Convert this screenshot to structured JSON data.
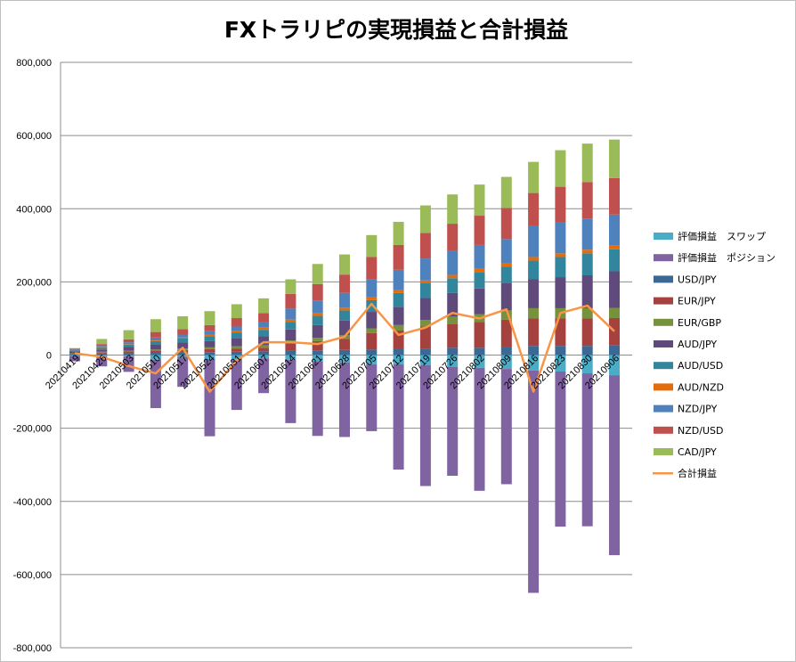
{
  "chart_data": {
    "type": "bar",
    "title": "FXトラリピの実現損益と合計損益",
    "stacked": true,
    "ylim": [
      -800000,
      800000
    ],
    "y_ticks": [
      800000,
      600000,
      400000,
      200000,
      0,
      -200000,
      -400000,
      -600000,
      -800000
    ],
    "y_tick_labels": [
      "800,000",
      "600,000",
      "400,000",
      "200,000",
      "0",
      "-200,000",
      "-400,000",
      "-600,000",
      "-800,000"
    ],
    "x_tick_labels": [
      "20210419",
      "20210426",
      "20210503",
      "20210510",
      "20210517",
      "20210524",
      "20210531",
      "20210607",
      "20210614",
      "20210621",
      "20210628",
      "20210705",
      "20210712",
      "20210719",
      "20210726",
      "20210802",
      "20210809",
      "20210816",
      "20210823",
      "20210830",
      "20210906"
    ],
    "grid": "horizontal",
    "legend_position": "right",
    "series": [
      {
        "name": "評価損益　スワップ",
        "color": "#4bacc6",
        "kind": "bar",
        "values": [
          -2000,
          -3000,
          -4000,
          -13000,
          -5000,
          -11000,
          -13000,
          -9000,
          -13000,
          -17000,
          -20000,
          -25000,
          -25000,
          -28000,
          -32000,
          -35000,
          -38000,
          -42000,
          -45000,
          -50000,
          -55000
        ]
      },
      {
        "name": "評価損益　ポジション",
        "color": "#8064a2",
        "kind": "bar",
        "values": [
          -15000,
          -28000,
          -42000,
          -132000,
          -82000,
          -211000,
          -137000,
          -95000,
          -173000,
          -204000,
          -204000,
          -183000,
          -288000,
          -330000,
          -298000,
          -336000,
          -315000,
          -608000,
          -424000,
          -418000,
          -492000
        ]
      },
      {
        "name": "USD/JPY",
        "color": "#3c6896",
        "kind": "bar",
        "values": [
          3000,
          4000,
          5000,
          6000,
          7000,
          8000,
          9000,
          10000,
          12000,
          13000,
          14000,
          15000,
          17000,
          18000,
          20000,
          20000,
          22000,
          25000,
          25000,
          25000,
          26000
        ]
      },
      {
        "name": "EUR/JPY",
        "color": "#a5413e",
        "kind": "bar",
        "values": [
          2000,
          3000,
          5000,
          6000,
          7000,
          8000,
          9000,
          10000,
          20000,
          25000,
          30000,
          45000,
          50000,
          60000,
          65000,
          70000,
          75000,
          75000,
          75000,
          75000,
          75000
        ]
      },
      {
        "name": "EUR/GBP",
        "color": "#76923c",
        "kind": "bar",
        "values": [
          1000,
          2000,
          2000,
          3000,
          4000,
          5000,
          6000,
          7000,
          8000,
          9000,
          10000,
          13000,
          15000,
          18000,
          20000,
          22000,
          25000,
          28000,
          28000,
          28000,
          28000
        ]
      },
      {
        "name": "AUD/JPY",
        "color": "#5f4a7b",
        "kind": "bar",
        "values": [
          4000,
          6000,
          10000,
          14000,
          16000,
          17000,
          22000,
          25000,
          30000,
          35000,
          40000,
          45000,
          50000,
          60000,
          65000,
          70000,
          75000,
          80000,
          85000,
          90000,
          100000
        ]
      },
      {
        "name": "AUD/USD",
        "color": "#31859c",
        "kind": "bar",
        "values": [
          3000,
          5000,
          7000,
          9000,
          11000,
          13000,
          15000,
          17000,
          20000,
          25000,
          28000,
          32000,
          38000,
          40000,
          40000,
          45000,
          45000,
          50000,
          55000,
          60000,
          60000
        ]
      },
      {
        "name": "AUD/NZD",
        "color": "#e46c0a",
        "kind": "bar",
        "values": [
          0,
          1000,
          1000,
          2000,
          3000,
          4000,
          5000,
          6000,
          7000,
          7000,
          8000,
          8000,
          8000,
          8000,
          9000,
          9000,
          10000,
          10000,
          10000,
          10000,
          10000
        ]
      },
      {
        "name": "NZD/JPY",
        "color": "#4f81bd",
        "kind": "bar",
        "values": [
          2000,
          4000,
          5000,
          8000,
          8000,
          10000,
          12000,
          15000,
          30000,
          35000,
          40000,
          50000,
          55000,
          60000,
          65000,
          65000,
          65000,
          85000,
          85000,
          85000,
          85000
        ]
      },
      {
        "name": "NZD/USD",
        "color": "#c0504d",
        "kind": "bar",
        "values": [
          2000,
          5000,
          8000,
          15000,
          15000,
          17000,
          23000,
          25000,
          40000,
          45000,
          50000,
          60000,
          68000,
          70000,
          75000,
          80000,
          85000,
          90000,
          97000,
          100000,
          100000
        ]
      },
      {
        "name": "CAD/JPY",
        "color": "#9bbb59",
        "kind": "bar",
        "values": [
          2000,
          14000,
          25000,
          35000,
          35000,
          38000,
          38000,
          40000,
          40000,
          55000,
          55000,
          60000,
          63000,
          75000,
          80000,
          85000,
          85000,
          85000,
          100000,
          105000,
          105000
        ]
      },
      {
        "name": "合計損益",
        "color": "#f79646",
        "kind": "line",
        "values": [
          5000,
          -5000,
          -30000,
          -50000,
          20000,
          -100000,
          -15000,
          35000,
          35000,
          30000,
          50000,
          140000,
          55000,
          75000,
          115000,
          100000,
          125000,
          -100000,
          115000,
          135000,
          65000
        ]
      }
    ]
  }
}
